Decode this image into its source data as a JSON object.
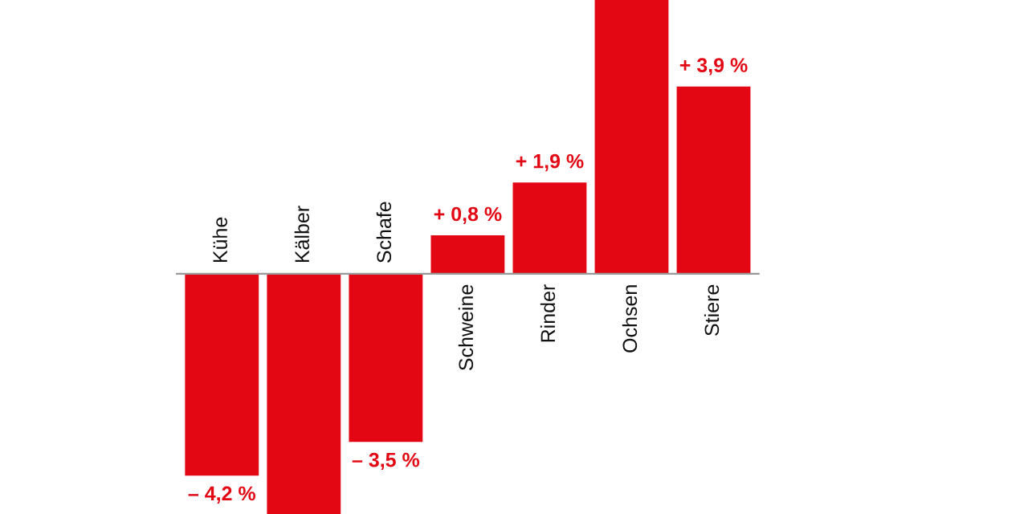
{
  "chart_data": {
    "type": "bar",
    "categories": [
      "Kühe",
      "Kälber",
      "Schafe",
      "Schweine",
      "Rinder",
      "Ochsen",
      "Stiere"
    ],
    "values": [
      -4.2,
      -5.0,
      -3.5,
      0.8,
      1.9,
      5.7,
      3.9
    ],
    "value_labels": [
      "– 4,2 %",
      null,
      "– 3,5 %",
      "+ 0,8 %",
      "+ 1,9 %",
      null,
      "+ 3,9 %"
    ],
    "color": "#e30613",
    "ylim": [
      -5.0,
      5.7
    ]
  }
}
